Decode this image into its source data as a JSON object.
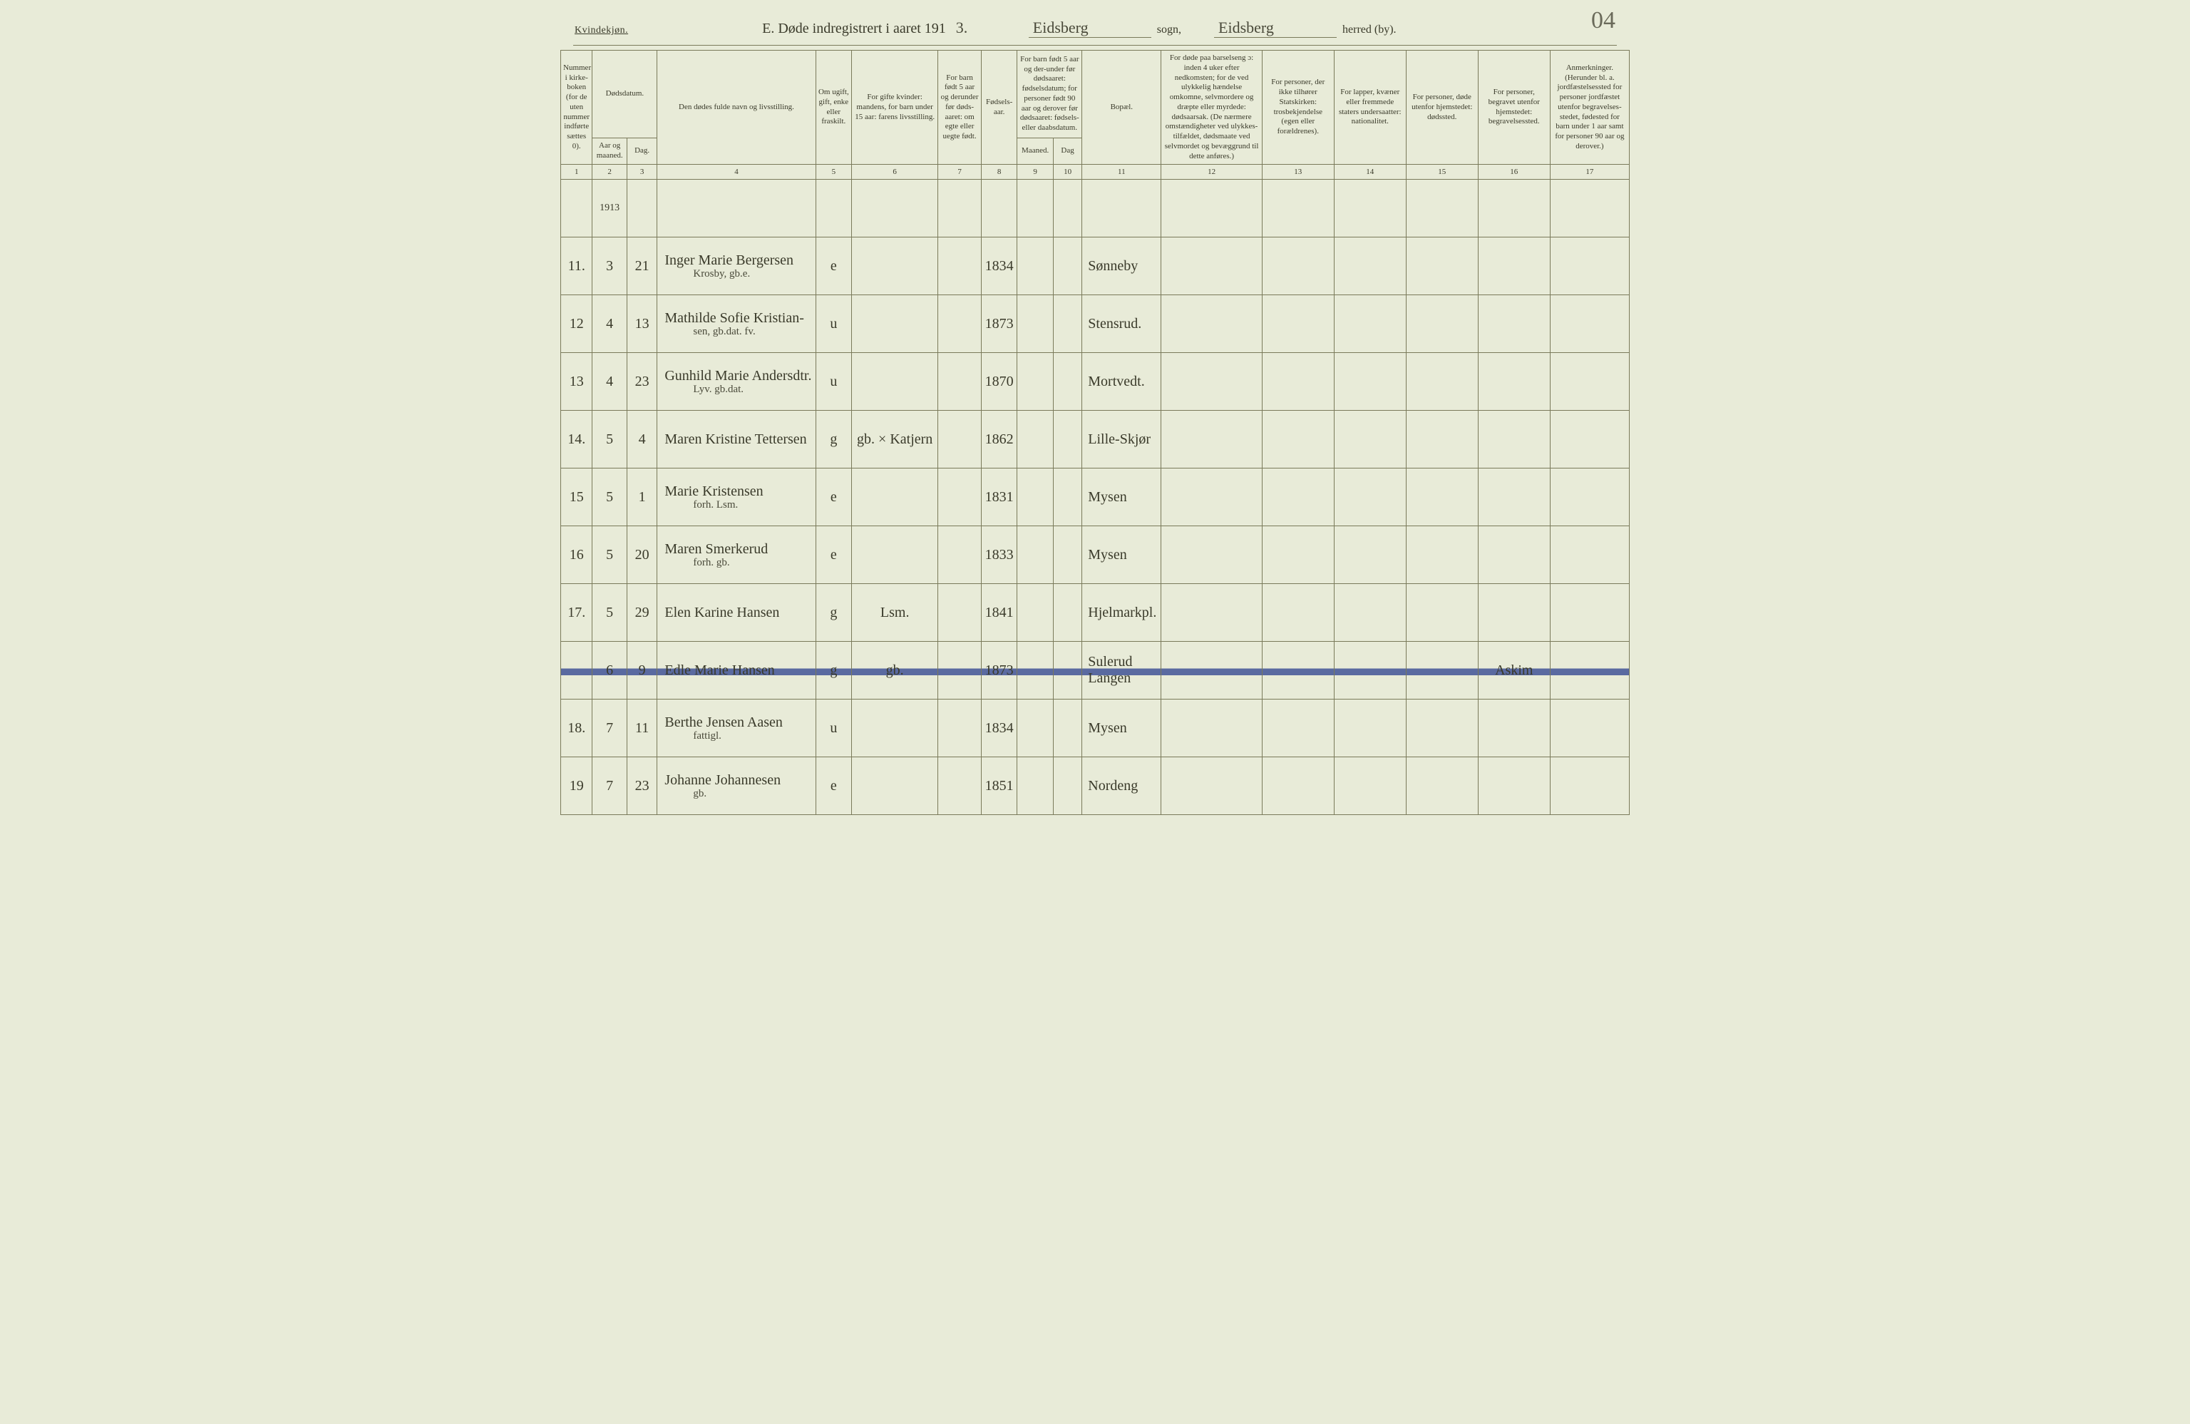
{
  "page_number_handwritten": "04",
  "header": {
    "kvindekjon": "Kvindekjøn.",
    "title_prefix": "E.  Døde indregistrert i aaret 191",
    "year_suffix_hand": "3.",
    "sogn_hand": "Eidsberg",
    "sogn_label": "sogn,",
    "herred_hand": "Eidsberg",
    "herred_label": "herred (by)."
  },
  "columns": {
    "c1": "Nummer i kirke-boken (for de uten nummer indførte sættes 0).",
    "c2_group": "Dødsdatum.",
    "c2a": "Aar og maaned.",
    "c2b": "Dag.",
    "c4": "Den dødes fulde navn og livsstilling.",
    "c5": "Om ugift, gift, enke eller fraskilt.",
    "c6": "For gifte kvinder: mandens, for barn under 15 aar: farens livsstilling.",
    "c7": "For barn født 5 aar og derunder før døds-aaret: om egte eller uegte født.",
    "c8": "Fødsels-aar.",
    "c9_group": "For barn født 5 aar og der-under før dødsaaret: fødselsdatum; for personer født 90 aar og derover før dødsaaret: fødsels- eller daabsdatum.",
    "c9a": "Maaned.",
    "c9b": "Dag",
    "c11": "Bopæl.",
    "c12": "For døde paa barselseng ɔ: inden 4 uker efter nedkomsten; for de ved ulykkelig hændelse omkomne, selvmordere og dræpte eller myrdede: dødsaarsak. (De nærmere omstændigheter ved ulykkes-tilfældet, dødsmaate ved selvmordet og bevæggrund til dette anføres.)",
    "c13": "For personer, der ikke tilhører Statskirken: trosbekjendelse (egen eller forældrenes).",
    "c14": "For lapper, kvæner eller fremmede staters undersaatter: nationalitet.",
    "c15": "For personer, døde utenfor hjemstedet: dødssted.",
    "c16": "For personer, begravet utenfor hjemstedet: begravelsessted.",
    "c17": "Anmerkninger. (Herunder bl. a. jordfæstelsessted for personer jordfæstet utenfor begravelses-stedet, fødested for barn under 1 aar samt for personer 90 aar og derover.)"
  },
  "colnums": [
    "1",
    "2",
    "3",
    "4",
    "5",
    "6",
    "7",
    "8",
    "9",
    "10",
    "11",
    "12",
    "13",
    "14",
    "15",
    "16",
    "17"
  ],
  "year_cell": "1913",
  "rows": [
    {
      "num": "11.",
      "mn": "3",
      "day": "21",
      "name": "Inger Marie Bergersen",
      "name_sub": "Krosby, gb.e.",
      "status": "e",
      "mand": "",
      "egte": "",
      "birth": "1834",
      "bopael": "Sønneby",
      "c12": "",
      "c13": "",
      "c14": "",
      "c15": "",
      "c16": "",
      "c17": ""
    },
    {
      "num": "12",
      "mn": "4",
      "day": "13",
      "name": "Mathilde Sofie Kristian-",
      "name_sub": "sen, gb.dat. fv.",
      "status": "u",
      "mand": "",
      "egte": "",
      "birth": "1873",
      "bopael": "Stensrud.",
      "c12": "",
      "c13": "",
      "c14": "",
      "c15": "",
      "c16": "",
      "c17": ""
    },
    {
      "num": "13",
      "mn": "4",
      "day": "23",
      "name": "Gunhild Marie Andersdtr.",
      "name_sub": "Lyv. gb.dat.",
      "status": "u",
      "mand": "",
      "egte": "",
      "birth": "1870",
      "bopael": "Mortvedt.",
      "c12": "",
      "c13": "",
      "c14": "",
      "c15": "",
      "c16": "",
      "c17": ""
    },
    {
      "num": "14.",
      "mn": "5",
      "day": "4",
      "name": "Maren Kristine Tettersen",
      "name_sub": "",
      "status": "g",
      "mand": "gb. × Katjern",
      "egte": "",
      "birth": "1862",
      "bopael": "Lille-Skjør",
      "c12": "",
      "c13": "",
      "c14": "",
      "c15": "",
      "c16": "",
      "c17": ""
    },
    {
      "num": "15",
      "mn": "5",
      "day": "1",
      "name": "Marie Kristensen",
      "name_sub": "forh. Lsm.",
      "status": "e",
      "mand": "",
      "egte": "",
      "birth": "1831",
      "bopael": "Mysen",
      "c12": "",
      "c13": "",
      "c14": "",
      "c15": "",
      "c16": "",
      "c17": ""
    },
    {
      "num": "16",
      "mn": "5",
      "day": "20",
      "name": "Maren Smerkerud",
      "name_sub": "forh. gb.",
      "status": "e",
      "mand": "",
      "egte": "",
      "birth": "1833",
      "bopael": "Mysen",
      "c12": "",
      "c13": "",
      "c14": "",
      "c15": "",
      "c16": "",
      "c17": ""
    },
    {
      "num": "17.",
      "mn": "5",
      "day": "29",
      "name": "Elen Karine Hansen",
      "name_sub": "",
      "status": "g",
      "mand": "Lsm.",
      "egte": "",
      "birth": "1841",
      "bopael": "Hjelmarkpl.",
      "c12": "",
      "c13": "",
      "c14": "",
      "c15": "",
      "c16": "",
      "c17": ""
    },
    {
      "struck": true,
      "num": "",
      "mn": "6",
      "day": "9",
      "name": "Edle Marie Hansen",
      "name_sub": "",
      "status": "g",
      "mand": "gb.",
      "egte": "",
      "birth": "1873",
      "bopael": "Sulerud Langen",
      "c12": "",
      "c13": "",
      "c14": "",
      "c15": "",
      "c16": "Askim",
      "c17": ""
    },
    {
      "num": "18.",
      "mn": "7",
      "day": "11",
      "name": "Berthe Jensen Aasen",
      "name_sub": "fattigl.",
      "status": "u",
      "mand": "",
      "egte": "",
      "birth": "1834",
      "bopael": "Mysen",
      "c12": "",
      "c13": "",
      "c14": "",
      "c15": "",
      "c16": "",
      "c17": ""
    },
    {
      "num": "19",
      "mn": "7",
      "day": "23",
      "name": "Johanne Johannesen",
      "name_sub": "gb.",
      "status": "e",
      "mand": "",
      "egte": "",
      "birth": "1851",
      "bopael": "Nordeng",
      "c12": "",
      "c13": "",
      "c14": "",
      "c15": "",
      "c16": "",
      "c17": ""
    }
  ],
  "style": {
    "background": "#e8ebd8",
    "border_color": "#7a7a5a",
    "ink_color": "#3a3a2a",
    "strike_color": "#5a6aa0",
    "header_fontsize_pt": 12,
    "cellhead_fontsize_pt": 8,
    "hand_fontsize_pt": 15
  }
}
